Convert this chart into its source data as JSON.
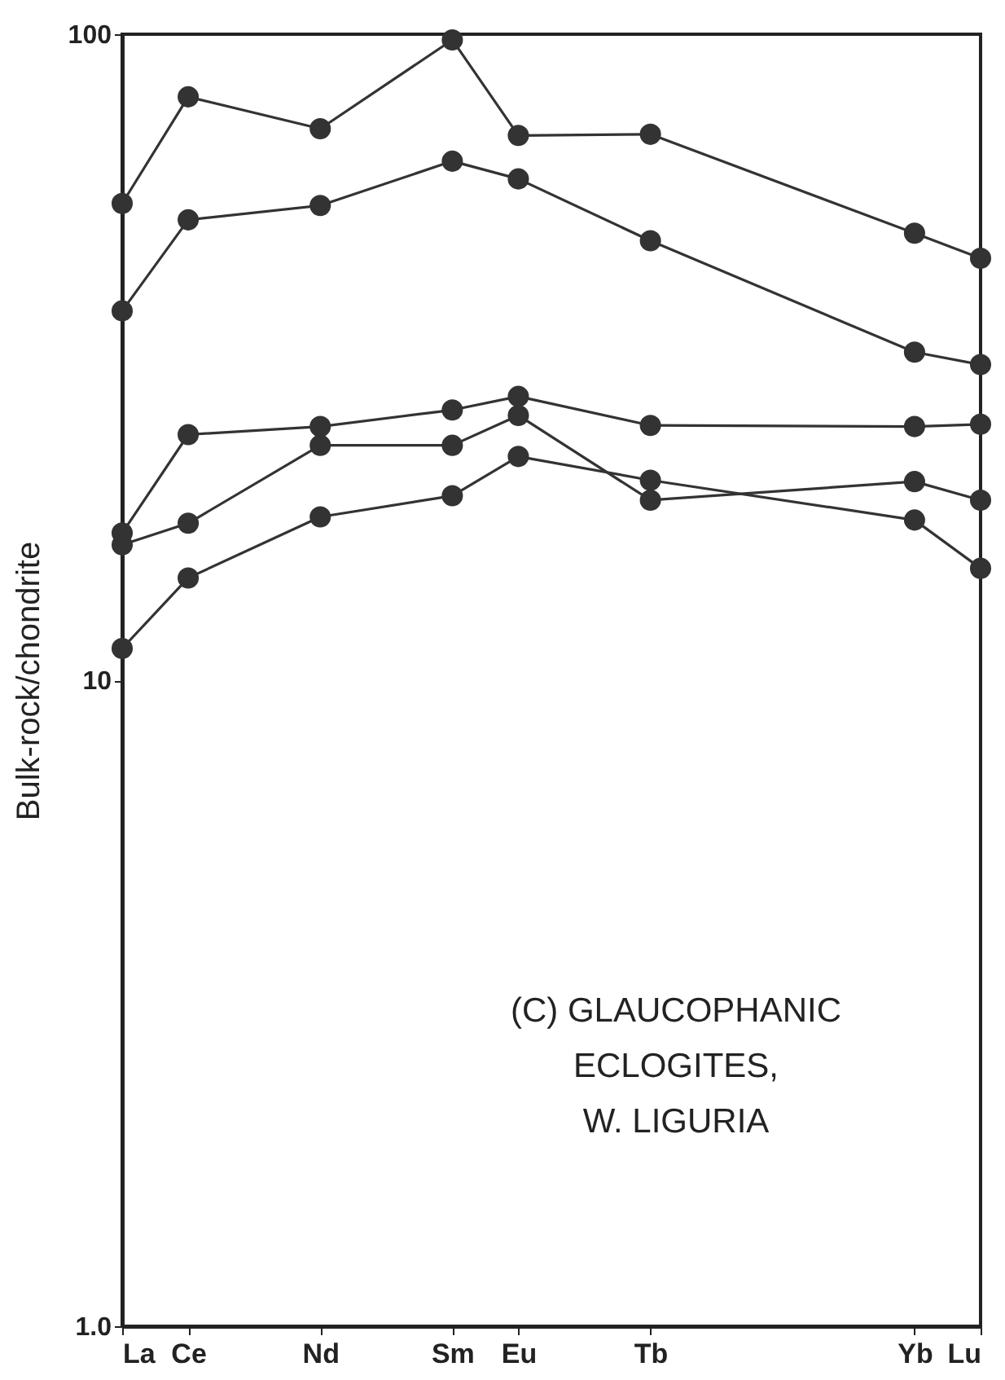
{
  "chart_data": {
    "type": "line",
    "ylabel": "Bulk-rock/chondrite",
    "annotations": [
      "(C) GLAUCOPHANIC\nECLOGITES,\nW. LIGURIA"
    ],
    "categories": [
      "La",
      "Ce",
      null,
      "Nd",
      null,
      "Sm",
      "Eu",
      null,
      "Tb",
      null,
      null,
      null,
      "Yb",
      "Lu"
    ],
    "series": [
      {
        "color": "#333333",
        "values": [
          54.7,
          80,
          null,
          71.4,
          null,
          98,
          69.7,
          null,
          70,
          null,
          null,
          null,
          49.2,
          45
        ]
      },
      {
        "color": "#333333",
        "values": [
          37.3,
          51.6,
          null,
          54.3,
          null,
          63.6,
          59.7,
          null,
          47.9,
          null,
          null,
          null,
          32.2,
          30.8
        ]
      },
      {
        "color": "#333333",
        "values": [
          16.9,
          24,
          null,
          24.7,
          null,
          26.2,
          27.5,
          null,
          24.8,
          null,
          null,
          null,
          24.7,
          24.9
        ]
      },
      {
        "color": "#333333",
        "values": [
          16.2,
          17.5,
          null,
          23.1,
          null,
          23.1,
          25.7,
          null,
          19.0,
          null,
          null,
          null,
          20.3,
          19.0
        ]
      },
      {
        "color": "#333333",
        "values": [
          11.2,
          14.4,
          null,
          17.9,
          null,
          19.3,
          22.2,
          null,
          20.4,
          null,
          null,
          null,
          17.7,
          14.9
        ]
      }
    ],
    "log": true,
    "ylim": [
      1,
      100
    ],
    "yticks": [
      {
        "value": 1,
        "label": "1.0"
      },
      10,
      100
    ],
    "marker": "circle",
    "line_style": "solid",
    "grid": false,
    "legend": false
  }
}
